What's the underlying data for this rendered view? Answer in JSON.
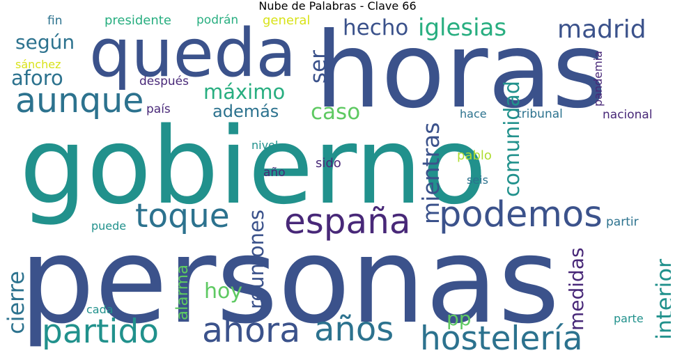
{
  "title": "Nube de Palabras - Clave 66",
  "words": [
    {
      "text": "gobierno",
      "color": "#21918c"
    },
    {
      "text": "personas",
      "color": "#3b528b"
    },
    {
      "text": "horas",
      "color": "#3b528b"
    },
    {
      "text": "queda",
      "color": "#3b528b"
    },
    {
      "text": "aunque",
      "color": "#2c728e"
    },
    {
      "text": "españa",
      "color": "#482878"
    },
    {
      "text": "podemos",
      "color": "#3b528b"
    },
    {
      "text": "toque",
      "color": "#2c728e"
    },
    {
      "text": "partido",
      "color": "#21918c"
    },
    {
      "text": "ahora",
      "color": "#3b528b"
    },
    {
      "text": "años",
      "color": "#2c728e"
    },
    {
      "text": "hostelería",
      "color": "#2c728e"
    },
    {
      "text": "iglesias",
      "color": "#28ae80"
    },
    {
      "text": "madrid",
      "color": "#3b528b"
    },
    {
      "text": "hecho",
      "color": "#3b528b"
    },
    {
      "text": "según",
      "color": "#2c728e"
    },
    {
      "text": "aforo",
      "color": "#2c728e"
    },
    {
      "text": "máximo",
      "color": "#28ae80"
    },
    {
      "text": "además",
      "color": "#2c728e"
    },
    {
      "text": "caso",
      "color": "#5ec962"
    },
    {
      "text": "ser",
      "color": "#3b528b"
    },
    {
      "text": "comunidad",
      "color": "#21918c"
    },
    {
      "text": "mientras",
      "color": "#3b528b"
    },
    {
      "text": "reuniones",
      "color": "#3b528b"
    },
    {
      "text": "alarma",
      "color": "#5ec962"
    },
    {
      "text": "medidas",
      "color": "#482878"
    },
    {
      "text": "interior",
      "color": "#21918c"
    },
    {
      "text": "cierre",
      "color": "#2c728e"
    },
    {
      "text": "hoy",
      "color": "#5ec962"
    },
    {
      "text": "pp",
      "color": "#5ec962"
    },
    {
      "text": "pandemia",
      "color": "#482878"
    },
    {
      "text": "presidente",
      "color": "#28ae80"
    },
    {
      "text": "podrán",
      "color": "#28ae80"
    },
    {
      "text": "general",
      "color": "#d8e219"
    },
    {
      "text": "fin",
      "color": "#2c728e"
    },
    {
      "text": "sánchez",
      "color": "#d8e219"
    },
    {
      "text": "después",
      "color": "#482878"
    },
    {
      "text": "país",
      "color": "#482878"
    },
    {
      "text": "hace",
      "color": "#2c728e"
    },
    {
      "text": "tribunal",
      "color": "#2c728e"
    },
    {
      "text": "nacional",
      "color": "#482878"
    },
    {
      "text": "nivel",
      "color": "#21918c"
    },
    {
      "text": "pablo",
      "color": "#addc30"
    },
    {
      "text": "sido",
      "color": "#482878"
    },
    {
      "text": "año",
      "color": "#482878"
    },
    {
      "text": "seis",
      "color": "#2c728e"
    },
    {
      "text": "puede",
      "color": "#21918c"
    },
    {
      "text": "partir",
      "color": "#2c728e"
    },
    {
      "text": "cada",
      "color": "#21918c"
    },
    {
      "text": "parte",
      "color": "#21918c"
    }
  ]
}
